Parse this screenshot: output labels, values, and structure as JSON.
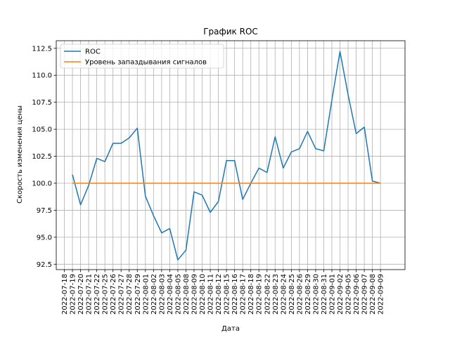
{
  "chart_data": {
    "type": "line",
    "title": "График ROC",
    "xlabel": "Дата",
    "ylabel": "Скорость изменения цены",
    "ylim": [
      92.0,
      113.2
    ],
    "yticks": [
      92.5,
      95.0,
      97.5,
      100.0,
      102.5,
      105.0,
      107.5,
      110.0,
      112.5
    ],
    "ytick_labels": [
      "92.5",
      "95.0",
      "97.5",
      "100.0",
      "102.5",
      "105.0",
      "107.5",
      "110.0",
      "112.5"
    ],
    "grid": true,
    "legend_position": "upper-left",
    "x": [
      "2022-07-18",
      "2022-07-19",
      "2022-07-20",
      "2022-07-21",
      "2022-07-22",
      "2022-07-25",
      "2022-07-26",
      "2022-07-27",
      "2022-07-28",
      "2022-07-29",
      "2022-08-01",
      "2022-08-02",
      "2022-08-03",
      "2022-08-04",
      "2022-08-05",
      "2022-08-08",
      "2022-08-09",
      "2022-08-10",
      "2022-08-11",
      "2022-08-12",
      "2022-08-15",
      "2022-08-16",
      "2022-08-17",
      "2022-08-18",
      "2022-08-19",
      "2022-08-22",
      "2022-08-23",
      "2022-08-24",
      "2022-08-25",
      "2022-08-26",
      "2022-08-29",
      "2022-08-30",
      "2022-08-31",
      "2022-09-01",
      "2022-09-02",
      "2022-09-05",
      "2022-09-06",
      "2022-09-07",
      "2022-09-08",
      "2022-09-09"
    ],
    "series": [
      {
        "name": "ROC",
        "color": "#1f77b4",
        "values": [
          null,
          100.8,
          98.0,
          99.8,
          102.3,
          102.0,
          103.7,
          103.7,
          104.2,
          105.1,
          98.8,
          97.0,
          95.4,
          95.8,
          92.9,
          93.8,
          99.2,
          98.9,
          97.3,
          98.3,
          102.1,
          102.1,
          98.5,
          100.0,
          101.4,
          101.0,
          104.3,
          101.4,
          102.9,
          103.2,
          104.8,
          103.2,
          103.0,
          107.7,
          112.2,
          108.2,
          104.6,
          105.2,
          100.2,
          100.0
        ]
      },
      {
        "name": "Уровень запаздывания сигналов",
        "color": "#ff7f0e",
        "values": [
          null,
          100.0,
          100.0,
          100.0,
          100.0,
          100.0,
          100.0,
          100.0,
          100.0,
          100.0,
          100.0,
          100.0,
          100.0,
          100.0,
          100.0,
          100.0,
          100.0,
          100.0,
          100.0,
          100.0,
          100.0,
          100.0,
          100.0,
          100.0,
          100.0,
          100.0,
          100.0,
          100.0,
          100.0,
          100.0,
          100.0,
          100.0,
          100.0,
          100.0,
          100.0,
          100.0,
          100.0,
          100.0,
          100.0,
          100.0
        ]
      }
    ]
  }
}
